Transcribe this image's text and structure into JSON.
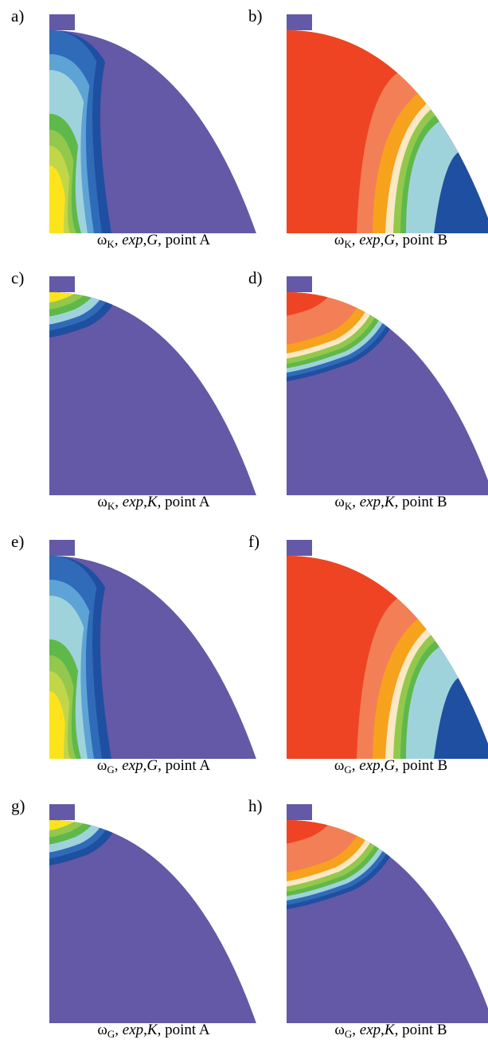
{
  "colors": {
    "background_purple": "#6459a7",
    "dark_blue": "#1f4fa0",
    "blue": "#2f6bb8",
    "light_blue": "#5ea3d6",
    "cyan": "#9fd3dc",
    "pale": "#fbe8c4",
    "green": "#5fb84a",
    "light_green": "#93c84d",
    "yellow_green": "#c2d64a",
    "yellow": "#fde31c",
    "orange": "#f7a21d",
    "salmon": "#f37f56",
    "red": "#ee4423"
  },
  "panels": [
    {
      "label": "a)",
      "symbol": "ω",
      "subscript": "K",
      "sep": ", ",
      "italic1": "exp",
      "mid": ",",
      "italic2": "G",
      "point": ", point A",
      "pattern": "vertical-cool"
    },
    {
      "label": "b)",
      "symbol": "ω",
      "subscript": "K",
      "sep": ", ",
      "italic1": "exp",
      "mid": ",",
      "italic2": "G",
      "point": ", point B",
      "pattern": "vertical-hot"
    },
    {
      "label": "c)",
      "symbol": "ω",
      "subscript": "K",
      "sep": ", ",
      "italic1": "exp",
      "mid": ",",
      "italic2": "K",
      "point": ", point A",
      "pattern": "cap-cool"
    },
    {
      "label": "d)",
      "symbol": "ω",
      "subscript": "K",
      "sep": ", ",
      "italic1": "exp",
      "mid": ",",
      "italic2": "K",
      "point": ", point B",
      "pattern": "cap-hot"
    },
    {
      "label": "e)",
      "symbol": "ω",
      "subscript": "G",
      "sep": ", ",
      "italic1": "exp",
      "mid": ",",
      "italic2": "G",
      "point": ", point A",
      "pattern": "vertical-cool"
    },
    {
      "label": "f)",
      "symbol": "ω",
      "subscript": "G",
      "sep": ", ",
      "italic1": "exp",
      "mid": ",",
      "italic2": "G",
      "point": ", point B",
      "pattern": "vertical-hot"
    },
    {
      "label": "g)",
      "symbol": "ω",
      "subscript": "G",
      "sep": ", ",
      "italic1": "exp",
      "mid": ",",
      "italic2": "K",
      "point": ", point A",
      "pattern": "cap-cool"
    },
    {
      "label": "h)",
      "symbol": "ω",
      "subscript": "G",
      "sep": ", ",
      "italic1": "exp",
      "mid": ",",
      "italic2": "K",
      "point": ", point B",
      "pattern": "cap-hot"
    }
  ]
}
